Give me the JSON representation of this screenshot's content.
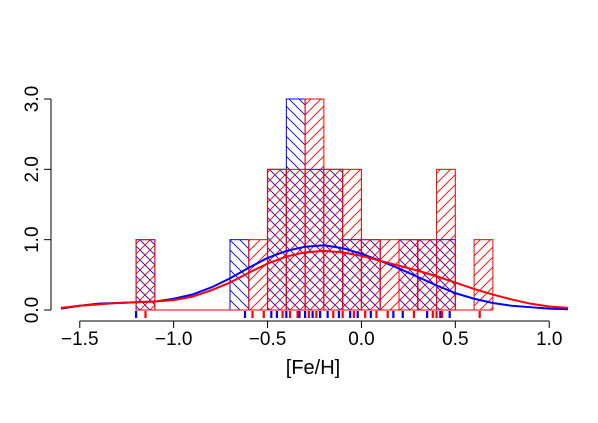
{
  "colors": {
    "blue": "#0000ff",
    "red": "#ff0000",
    "axis": "#000000"
  },
  "chart_data": {
    "type": "histogram",
    "xlabel": "[Fe/H]",
    "ylabel": "",
    "xlim": [
      -1.6,
      1.1
    ],
    "ylim": [
      0,
      3
    ],
    "x_ticks": [
      {
        "value": -1.5,
        "label": "−1.5"
      },
      {
        "value": -1.0,
        "label": "−1.0"
      },
      {
        "value": -0.5,
        "label": "−0.5"
      },
      {
        "value": 0.0,
        "label": "0.0"
      },
      {
        "value": 0.5,
        "label": "0.5"
      },
      {
        "value": 1.0,
        "label": "1.0"
      }
    ],
    "y_ticks": [
      {
        "value": 0,
        "label": "0.0"
      },
      {
        "value": 1,
        "label": "1.0"
      },
      {
        "value": 2,
        "label": "2.0"
      },
      {
        "value": 3,
        "label": "3.0"
      }
    ],
    "bin_width": 0.1,
    "series": [
      {
        "color": "blue",
        "hatch": "crosshatch",
        "bins": [
          {
            "x0": -1.2,
            "count": 1
          },
          {
            "x0": -0.7,
            "count": 1
          },
          {
            "x0": -0.5,
            "count": 2
          },
          {
            "x0": -0.4,
            "count": 3
          },
          {
            "x0": -0.3,
            "count": 2
          },
          {
            "x0": -0.2,
            "count": 2
          },
          {
            "x0": -0.1,
            "count": 1
          },
          {
            "x0": 0.0,
            "count": 1
          },
          {
            "x0": 0.2,
            "count": 1
          },
          {
            "x0": 0.3,
            "count": 1
          },
          {
            "x0": 0.4,
            "count": 1
          }
        ],
        "density_curve": [
          [
            -1.6,
            0.02
          ],
          [
            -1.5,
            0.06
          ],
          [
            -1.4,
            0.09
          ],
          [
            -1.3,
            0.1
          ],
          [
            -1.2,
            0.11
          ],
          [
            -1.1,
            0.12
          ],
          [
            -1.0,
            0.16
          ],
          [
            -0.9,
            0.22
          ],
          [
            -0.8,
            0.32
          ],
          [
            -0.7,
            0.45
          ],
          [
            -0.6,
            0.6
          ],
          [
            -0.5,
            0.74
          ],
          [
            -0.4,
            0.84
          ],
          [
            -0.3,
            0.9
          ],
          [
            -0.2,
            0.92
          ],
          [
            -0.1,
            0.88
          ],
          [
            0.0,
            0.8
          ],
          [
            0.1,
            0.7
          ],
          [
            0.2,
            0.59
          ],
          [
            0.3,
            0.47
          ],
          [
            0.4,
            0.35
          ],
          [
            0.5,
            0.24
          ],
          [
            0.6,
            0.16
          ],
          [
            0.7,
            0.1
          ],
          [
            0.8,
            0.06
          ],
          [
            0.9,
            0.04
          ],
          [
            1.0,
            0.02
          ],
          [
            1.1,
            0.01
          ]
        ],
        "rug": [
          -1.2,
          -0.62,
          -0.48,
          -0.45,
          -0.4,
          -0.33,
          -0.3,
          -0.26,
          -0.22,
          -0.18,
          -0.12,
          -0.06,
          -0.02,
          0.05,
          0.17,
          0.22,
          0.35,
          0.42,
          0.47
        ]
      },
      {
        "color": "red",
        "hatch": "diagonal",
        "bins": [
          {
            "x0": -1.2,
            "count": 1
          },
          {
            "x0": -0.6,
            "count": 1
          },
          {
            "x0": -0.5,
            "count": 2
          },
          {
            "x0": -0.4,
            "count": 2
          },
          {
            "x0": -0.3,
            "count": 3
          },
          {
            "x0": -0.2,
            "count": 2
          },
          {
            "x0": -0.1,
            "count": 2
          },
          {
            "x0": 0.0,
            "count": 1
          },
          {
            "x0": 0.1,
            "count": 1
          },
          {
            "x0": 0.2,
            "count": 1
          },
          {
            "x0": 0.3,
            "count": 1
          },
          {
            "x0": 0.4,
            "count": 2
          },
          {
            "x0": 0.6,
            "count": 1
          }
        ],
        "density_curve": [
          [
            -1.6,
            0.03
          ],
          [
            -1.5,
            0.06
          ],
          [
            -1.4,
            0.08
          ],
          [
            -1.3,
            0.1
          ],
          [
            -1.2,
            0.11
          ],
          [
            -1.1,
            0.12
          ],
          [
            -1.0,
            0.14
          ],
          [
            -0.9,
            0.19
          ],
          [
            -0.8,
            0.28
          ],
          [
            -0.7,
            0.39
          ],
          [
            -0.6,
            0.53
          ],
          [
            -0.5,
            0.66
          ],
          [
            -0.4,
            0.76
          ],
          [
            -0.3,
            0.82
          ],
          [
            -0.2,
            0.84
          ],
          [
            -0.1,
            0.82
          ],
          [
            0.0,
            0.77
          ],
          [
            0.1,
            0.7
          ],
          [
            0.2,
            0.63
          ],
          [
            0.3,
            0.56
          ],
          [
            0.4,
            0.48
          ],
          [
            0.5,
            0.39
          ],
          [
            0.6,
            0.3
          ],
          [
            0.7,
            0.22
          ],
          [
            0.8,
            0.15
          ],
          [
            0.9,
            0.09
          ],
          [
            1.0,
            0.05
          ],
          [
            1.1,
            0.03
          ]
        ],
        "rug": [
          -1.15,
          -0.58,
          -0.52,
          -0.42,
          -0.38,
          -0.34,
          -0.28,
          -0.24,
          -0.15,
          -0.1,
          -0.04,
          0.02,
          0.08,
          0.14,
          0.28,
          0.38,
          0.4,
          0.43,
          0.63
        ]
      }
    ]
  }
}
